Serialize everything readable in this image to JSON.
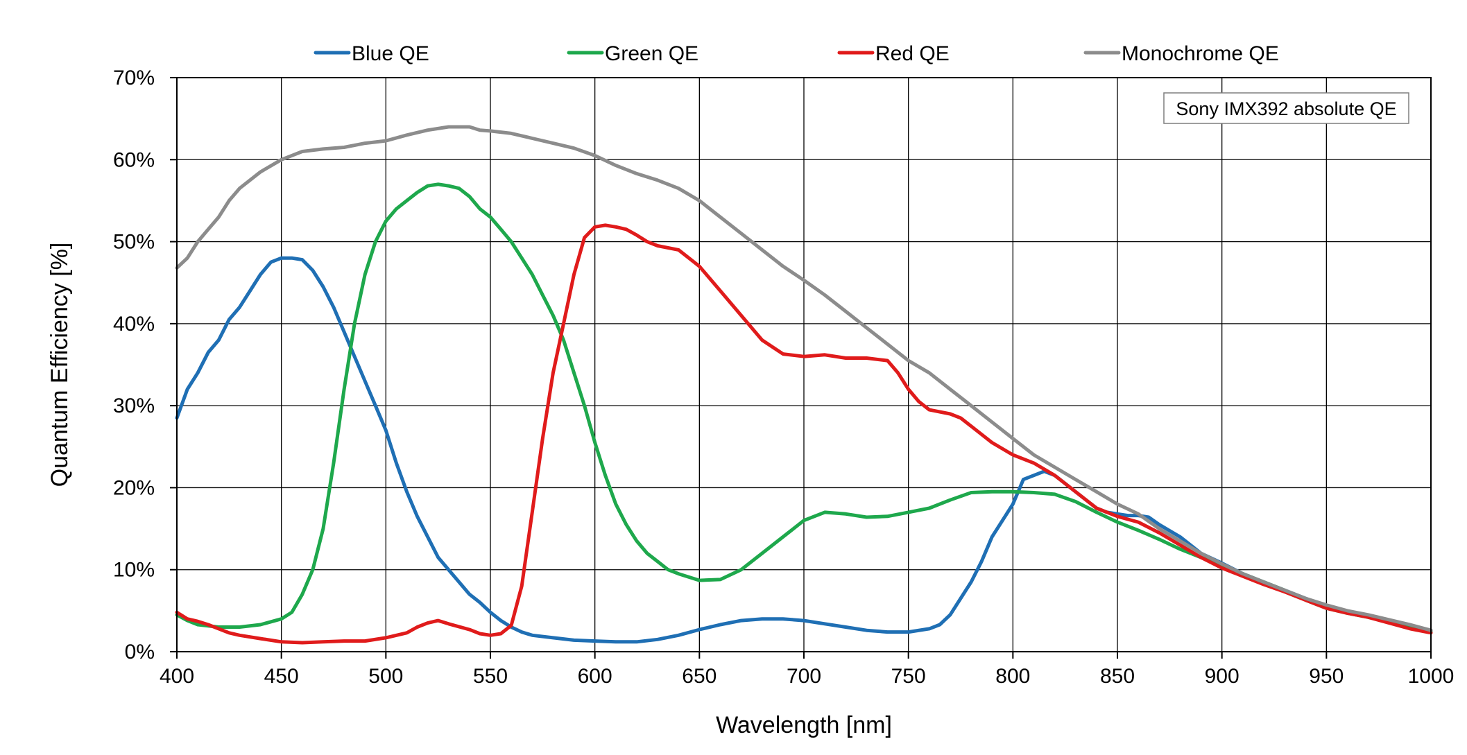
{
  "chart_data": {
    "type": "line",
    "title": "",
    "xlabel": "Wavelength [nm]",
    "ylabel": "Quantum Efficiency [%]",
    "xlim": [
      400,
      1000
    ],
    "ylim": [
      0,
      70
    ],
    "x_ticks": [
      400,
      450,
      500,
      550,
      600,
      650,
      700,
      750,
      800,
      850,
      900,
      950,
      1000
    ],
    "x_tick_labels": [
      "400",
      "450",
      "500",
      "550",
      "600",
      "650",
      "700",
      "750",
      "800",
      "850",
      "900",
      "950",
      "1000"
    ],
    "y_ticks": [
      0,
      10,
      20,
      30,
      40,
      50,
      60,
      70
    ],
    "y_tick_labels": [
      "0%",
      "10%",
      "20%",
      "30%",
      "40%",
      "50%",
      "60%",
      "70%"
    ],
    "grid": true,
    "legend_position": "top",
    "annotation": "Sony IMX392 absolute QE",
    "series": [
      {
        "name": "Blue QE",
        "color": "#1f6fb4",
        "points": [
          [
            400,
            28.5
          ],
          [
            405,
            32
          ],
          [
            410,
            34
          ],
          [
            415,
            36.5
          ],
          [
            420,
            38
          ],
          [
            425,
            40.5
          ],
          [
            430,
            42
          ],
          [
            435,
            44
          ],
          [
            440,
            46
          ],
          [
            445,
            47.5
          ],
          [
            450,
            48
          ],
          [
            455,
            48
          ],
          [
            460,
            47.8
          ],
          [
            465,
            46.5
          ],
          [
            470,
            44.5
          ],
          [
            475,
            42
          ],
          [
            480,
            39
          ],
          [
            485,
            36
          ],
          [
            490,
            33
          ],
          [
            495,
            30
          ],
          [
            500,
            27
          ],
          [
            505,
            23
          ],
          [
            510,
            19.5
          ],
          [
            515,
            16.5
          ],
          [
            520,
            14
          ],
          [
            525,
            11.5
          ],
          [
            530,
            10
          ],
          [
            535,
            8.5
          ],
          [
            540,
            7
          ],
          [
            545,
            6
          ],
          [
            550,
            4.8
          ],
          [
            555,
            3.8
          ],
          [
            560,
            3
          ],
          [
            565,
            2.4
          ],
          [
            570,
            2
          ],
          [
            580,
            1.7
          ],
          [
            590,
            1.4
          ],
          [
            600,
            1.3
          ],
          [
            610,
            1.2
          ],
          [
            620,
            1.2
          ],
          [
            630,
            1.5
          ],
          [
            640,
            2
          ],
          [
            650,
            2.7
          ],
          [
            660,
            3.3
          ],
          [
            670,
            3.8
          ],
          [
            680,
            4
          ],
          [
            690,
            4
          ],
          [
            700,
            3.8
          ],
          [
            710,
            3.4
          ],
          [
            720,
            3
          ],
          [
            730,
            2.6
          ],
          [
            740,
            2.4
          ],
          [
            750,
            2.4
          ],
          [
            760,
            2.8
          ],
          [
            765,
            3.3
          ],
          [
            770,
            4.5
          ],
          [
            775,
            6.5
          ],
          [
            780,
            8.5
          ],
          [
            785,
            11
          ],
          [
            790,
            14
          ],
          [
            795,
            16
          ],
          [
            800,
            18
          ],
          [
            805,
            21
          ],
          [
            810,
            21.5
          ],
          [
            815,
            22
          ],
          [
            820,
            21.5
          ],
          [
            825,
            20.5
          ],
          [
            830,
            19.5
          ],
          [
            835,
            18.5
          ],
          [
            840,
            17.5
          ],
          [
            845,
            17
          ],
          [
            850,
            16.8
          ],
          [
            855,
            16.6
          ],
          [
            860,
            16.6
          ],
          [
            865,
            16.4
          ],
          [
            870,
            15.5
          ],
          [
            880,
            14
          ],
          [
            890,
            12
          ],
          [
            900,
            10.8
          ],
          [
            910,
            9.5
          ],
          [
            920,
            8.5
          ],
          [
            930,
            7.5
          ],
          [
            940,
            6.5
          ],
          [
            950,
            5.5
          ],
          [
            960,
            4.9
          ],
          [
            970,
            4.3
          ],
          [
            980,
            3.8
          ],
          [
            990,
            3.2
          ],
          [
            1000,
            2.6
          ]
        ]
      },
      {
        "name": "Green QE",
        "color": "#1ea84c",
        "points": [
          [
            400,
            4.5
          ],
          [
            405,
            3.8
          ],
          [
            410,
            3.3
          ],
          [
            420,
            3
          ],
          [
            430,
            3
          ],
          [
            440,
            3.3
          ],
          [
            450,
            4
          ],
          [
            455,
            4.8
          ],
          [
            460,
            7
          ],
          [
            465,
            10
          ],
          [
            470,
            15
          ],
          [
            475,
            23
          ],
          [
            480,
            32
          ],
          [
            485,
            40
          ],
          [
            490,
            46
          ],
          [
            495,
            50
          ],
          [
            500,
            52.5
          ],
          [
            505,
            54
          ],
          [
            510,
            55
          ],
          [
            515,
            56
          ],
          [
            520,
            56.8
          ],
          [
            525,
            57
          ],
          [
            530,
            56.8
          ],
          [
            535,
            56.5
          ],
          [
            540,
            55.5
          ],
          [
            545,
            54
          ],
          [
            550,
            53
          ],
          [
            555,
            51.5
          ],
          [
            560,
            50
          ],
          [
            565,
            48
          ],
          [
            570,
            46
          ],
          [
            575,
            43.5
          ],
          [
            580,
            41
          ],
          [
            585,
            38
          ],
          [
            590,
            34
          ],
          [
            595,
            30
          ],
          [
            600,
            25.5
          ],
          [
            605,
            21.5
          ],
          [
            610,
            18
          ],
          [
            615,
            15.5
          ],
          [
            620,
            13.5
          ],
          [
            625,
            12
          ],
          [
            630,
            11
          ],
          [
            635,
            10
          ],
          [
            640,
            9.5
          ],
          [
            650,
            8.7
          ],
          [
            660,
            8.8
          ],
          [
            670,
            10
          ],
          [
            680,
            12
          ],
          [
            690,
            14
          ],
          [
            700,
            16
          ],
          [
            710,
            17
          ],
          [
            720,
            16.8
          ],
          [
            730,
            16.4
          ],
          [
            740,
            16.5
          ],
          [
            750,
            17
          ],
          [
            760,
            17.5
          ],
          [
            770,
            18.5
          ],
          [
            780,
            19.4
          ],
          [
            790,
            19.5
          ],
          [
            800,
            19.5
          ],
          [
            810,
            19.4
          ],
          [
            820,
            19.2
          ],
          [
            830,
            18.3
          ],
          [
            840,
            17
          ],
          [
            850,
            15.8
          ],
          [
            860,
            14.8
          ],
          [
            870,
            13.7
          ],
          [
            880,
            12.5
          ],
          [
            890,
            11.5
          ],
          [
            900,
            10.5
          ],
          [
            910,
            9.5
          ],
          [
            920,
            8.5
          ],
          [
            930,
            7.5
          ],
          [
            940,
            6.3
          ],
          [
            950,
            5.3
          ],
          [
            960,
            4.7
          ],
          [
            970,
            4.2
          ],
          [
            980,
            3.6
          ],
          [
            990,
            3
          ],
          [
            1000,
            2.4
          ]
        ]
      },
      {
        "name": "Red QE",
        "color": "#e01b1b",
        "points": [
          [
            400,
            4.8
          ],
          [
            405,
            4
          ],
          [
            410,
            3.7
          ],
          [
            415,
            3.3
          ],
          [
            420,
            2.8
          ],
          [
            425,
            2.3
          ],
          [
            430,
            2
          ],
          [
            440,
            1.6
          ],
          [
            450,
            1.2
          ],
          [
            460,
            1.1
          ],
          [
            470,
            1.2
          ],
          [
            480,
            1.3
          ],
          [
            490,
            1.3
          ],
          [
            500,
            1.7
          ],
          [
            510,
            2.3
          ],
          [
            515,
            3
          ],
          [
            520,
            3.5
          ],
          [
            525,
            3.8
          ],
          [
            530,
            3.4
          ],
          [
            540,
            2.7
          ],
          [
            545,
            2.2
          ],
          [
            550,
            2
          ],
          [
            555,
            2.2
          ],
          [
            560,
            3.2
          ],
          [
            565,
            8
          ],
          [
            570,
            17
          ],
          [
            575,
            26
          ],
          [
            580,
            34
          ],
          [
            585,
            40
          ],
          [
            590,
            46
          ],
          [
            595,
            50.5
          ],
          [
            600,
            51.8
          ],
          [
            605,
            52
          ],
          [
            610,
            51.8
          ],
          [
            615,
            51.5
          ],
          [
            620,
            50.8
          ],
          [
            625,
            50
          ],
          [
            630,
            49.5
          ],
          [
            640,
            49
          ],
          [
            650,
            47
          ],
          [
            660,
            44
          ],
          [
            670,
            41
          ],
          [
            680,
            38
          ],
          [
            690,
            36.3
          ],
          [
            700,
            36
          ],
          [
            710,
            36.2
          ],
          [
            720,
            35.8
          ],
          [
            730,
            35.8
          ],
          [
            740,
            35.5
          ],
          [
            745,
            34
          ],
          [
            750,
            32
          ],
          [
            755,
            30.5
          ],
          [
            760,
            29.5
          ],
          [
            770,
            29
          ],
          [
            775,
            28.5
          ],
          [
            780,
            27.5
          ],
          [
            790,
            25.5
          ],
          [
            800,
            24
          ],
          [
            810,
            23
          ],
          [
            820,
            21.5
          ],
          [
            830,
            19.5
          ],
          [
            840,
            17.5
          ],
          [
            850,
            16.5
          ],
          [
            860,
            15.8
          ],
          [
            870,
            14.5
          ],
          [
            880,
            13
          ],
          [
            890,
            11.5
          ],
          [
            900,
            10.2
          ],
          [
            910,
            9.2
          ],
          [
            920,
            8.2
          ],
          [
            930,
            7.3
          ],
          [
            940,
            6.3
          ],
          [
            950,
            5.3
          ],
          [
            960,
            4.7
          ],
          [
            970,
            4.2
          ],
          [
            980,
            3.5
          ],
          [
            990,
            2.8
          ],
          [
            1000,
            2.3
          ]
        ]
      },
      {
        "name": "Monochrome QE",
        "color": "#8c8c8c",
        "points": [
          [
            400,
            46.8
          ],
          [
            405,
            48
          ],
          [
            410,
            50
          ],
          [
            415,
            51.5
          ],
          [
            420,
            53
          ],
          [
            425,
            55
          ],
          [
            430,
            56.5
          ],
          [
            440,
            58.5
          ],
          [
            450,
            60
          ],
          [
            455,
            60.5
          ],
          [
            460,
            61
          ],
          [
            470,
            61.3
          ],
          [
            480,
            61.5
          ],
          [
            490,
            62
          ],
          [
            500,
            62.3
          ],
          [
            510,
            63
          ],
          [
            520,
            63.6
          ],
          [
            530,
            64
          ],
          [
            540,
            64
          ],
          [
            545,
            63.6
          ],
          [
            550,
            63.5
          ],
          [
            560,
            63.2
          ],
          [
            570,
            62.6
          ],
          [
            580,
            62
          ],
          [
            590,
            61.4
          ],
          [
            600,
            60.5
          ],
          [
            610,
            59.3
          ],
          [
            620,
            58.3
          ],
          [
            630,
            57.5
          ],
          [
            640,
            56.5
          ],
          [
            650,
            55
          ],
          [
            660,
            53
          ],
          [
            670,
            51
          ],
          [
            680,
            49
          ],
          [
            690,
            47
          ],
          [
            700,
            45.3
          ],
          [
            710,
            43.5
          ],
          [
            720,
            41.5
          ],
          [
            730,
            39.5
          ],
          [
            740,
            37.5
          ],
          [
            750,
            35.5
          ],
          [
            760,
            34
          ],
          [
            770,
            32
          ],
          [
            780,
            30
          ],
          [
            790,
            28
          ],
          [
            800,
            26
          ],
          [
            810,
            24
          ],
          [
            820,
            22.5
          ],
          [
            830,
            21
          ],
          [
            840,
            19.5
          ],
          [
            850,
            18
          ],
          [
            860,
            16.8
          ],
          [
            870,
            15
          ],
          [
            880,
            13.5
          ],
          [
            890,
            12
          ],
          [
            900,
            10.7
          ],
          [
            910,
            9.5
          ],
          [
            920,
            8.5
          ],
          [
            930,
            7.5
          ],
          [
            940,
            6.5
          ],
          [
            950,
            5.7
          ],
          [
            960,
            5
          ],
          [
            970,
            4.5
          ],
          [
            980,
            3.9
          ],
          [
            990,
            3.3
          ],
          [
            1000,
            2.6
          ]
        ]
      }
    ]
  }
}
